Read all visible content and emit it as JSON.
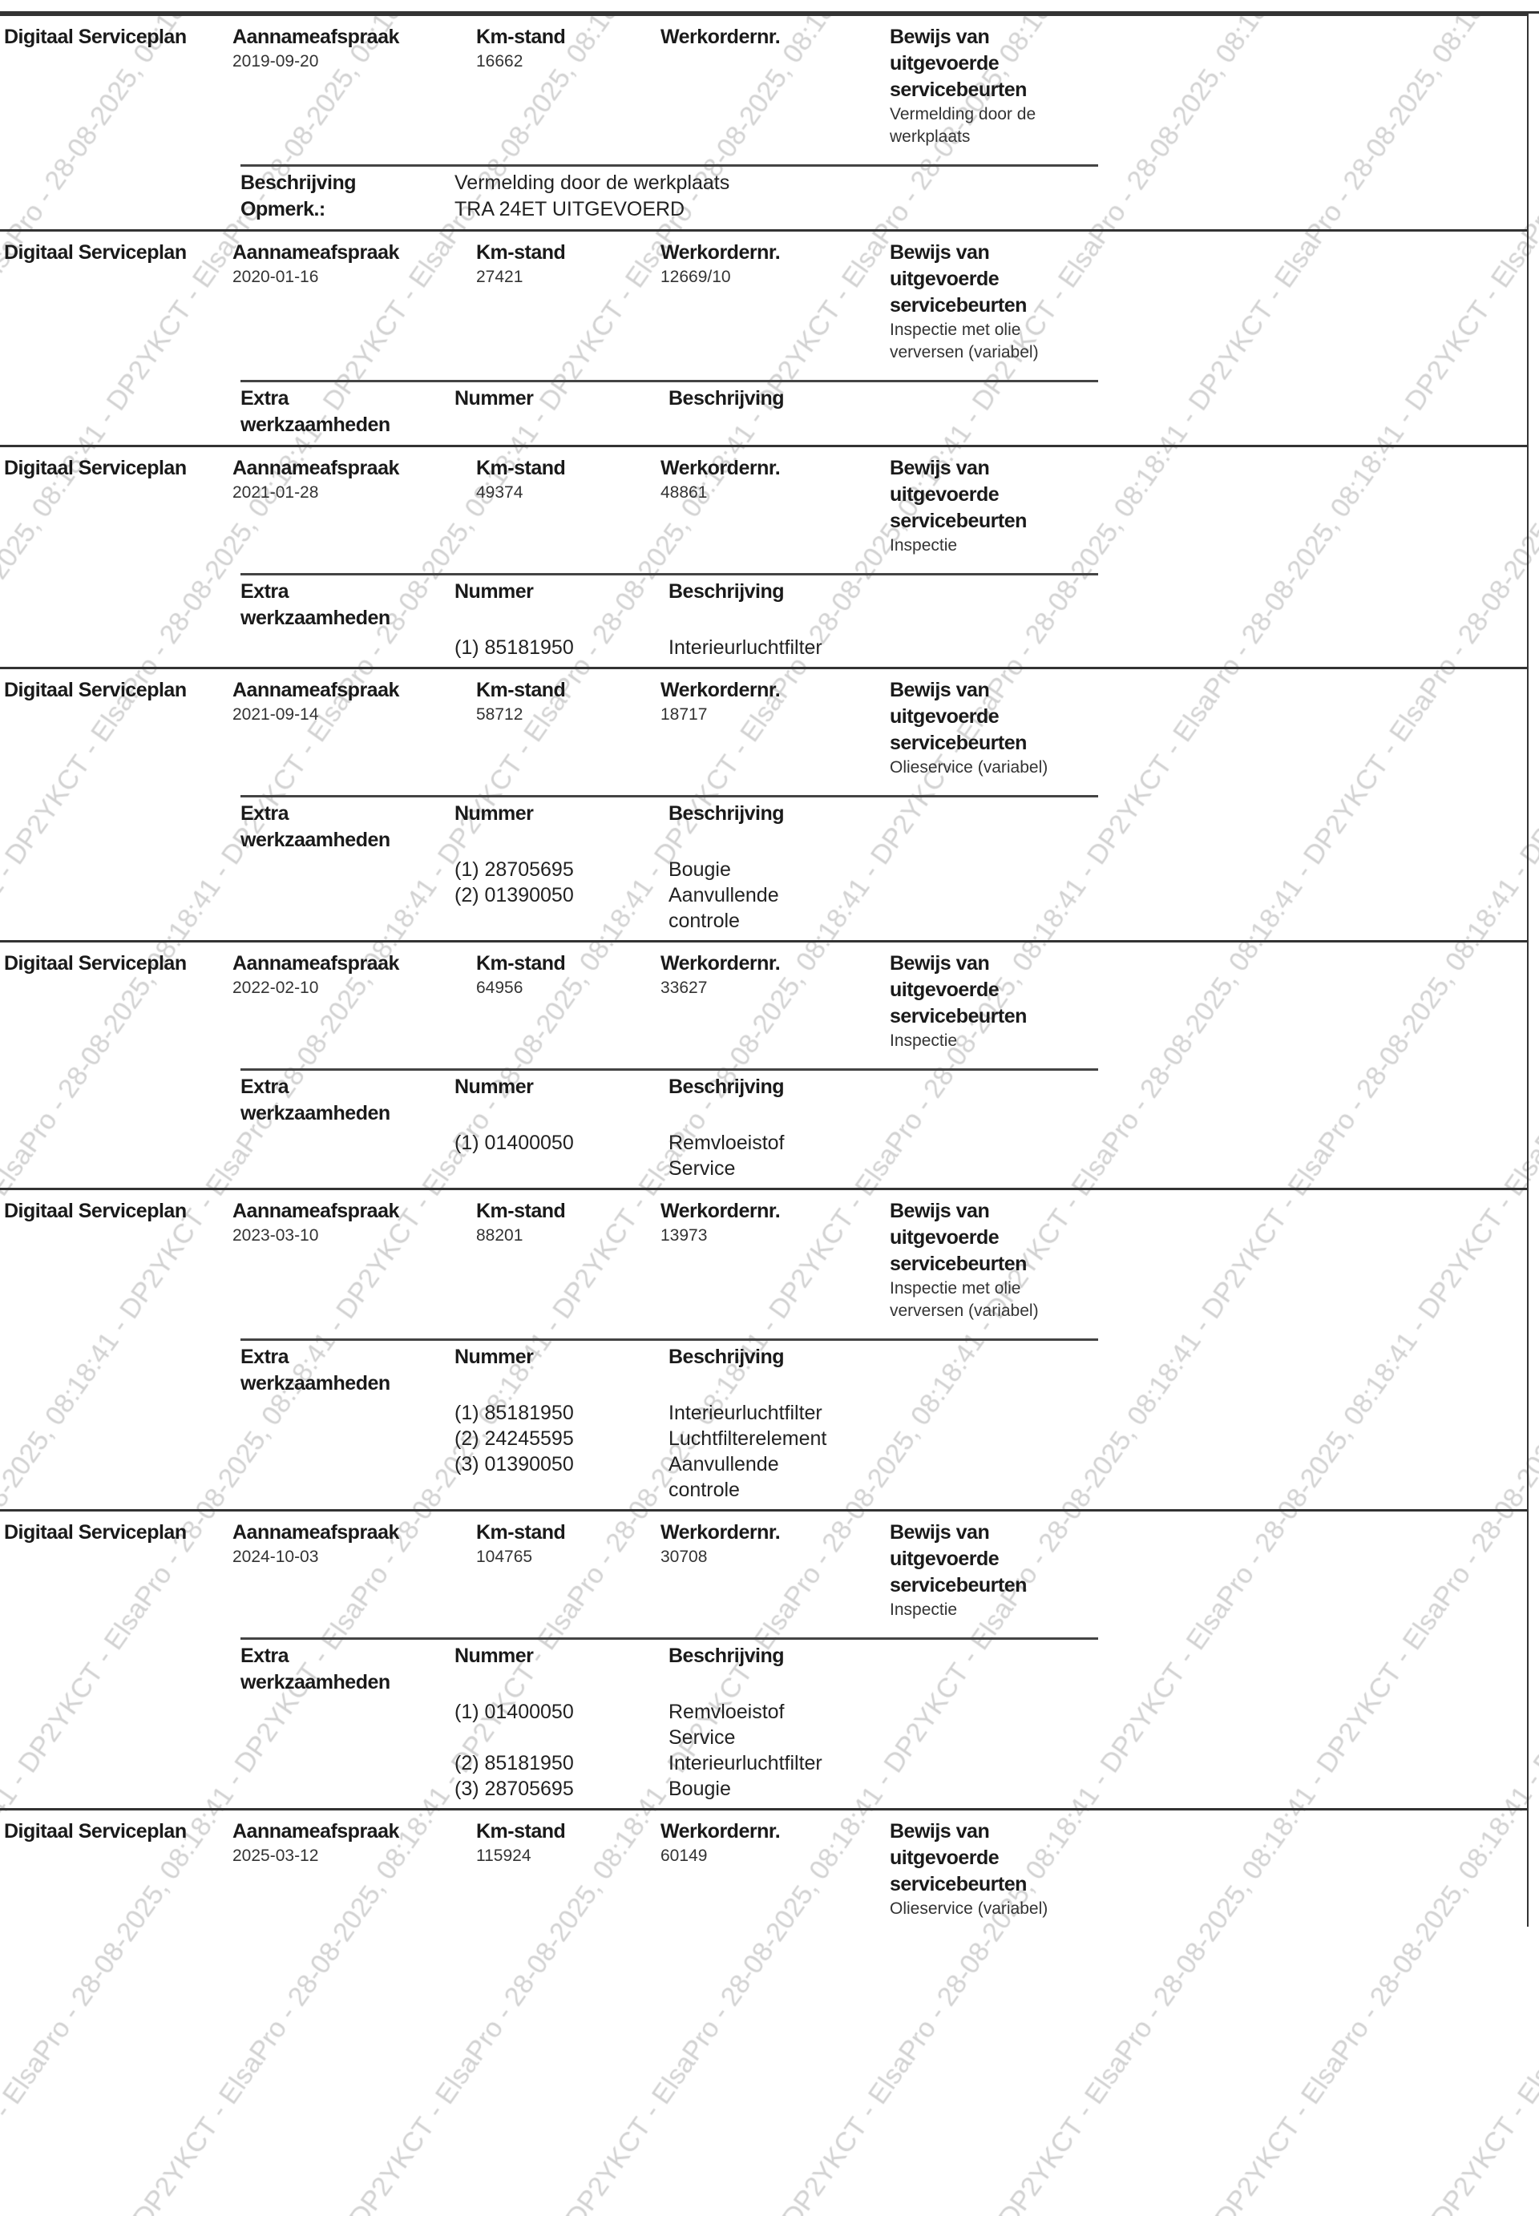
{
  "watermark": "08:18:41 - DP2YKCT - ElsaPro - 28-08-2025,",
  "labels": {
    "plan": "Digitaal Serviceplan",
    "date": "Aannameafspraak",
    "km": "Km-stand",
    "order": "Werkordernr.",
    "proof1": "Bewijs van",
    "proof2": "uitgevoerde",
    "proof3": "servicebeurten",
    "extra1": "Extra",
    "extra2": "werkzaamheden",
    "number": "Nummer",
    "description": "Beschrijving",
    "remark": "Opmerk.:"
  },
  "records": [
    {
      "date": "2019-09-20",
      "km": "16662",
      "order": "",
      "proof": [
        "Vermelding door de",
        "werkplaats"
      ],
      "note": {
        "description": "Vermelding door de werkplaats",
        "remark": "TRA 24ET UITGEVOERD"
      }
    },
    {
      "date": "2020-01-16",
      "km": "27421",
      "order": "12669/10",
      "proof": [
        "Inspectie met olie",
        "verversen (variabel)"
      ],
      "items": []
    },
    {
      "date": "2021-01-28",
      "km": "49374",
      "order": "48861",
      "proof": [
        "Inspectie"
      ],
      "items": [
        {
          "number": "(1) 85181950",
          "description": [
            "Interieurluchtfilter"
          ]
        }
      ]
    },
    {
      "date": "2021-09-14",
      "km": "58712",
      "order": "18717",
      "proof": [
        "Olieservice (variabel)"
      ],
      "items": [
        {
          "number": "(1) 28705695",
          "description": [
            "Bougie"
          ]
        },
        {
          "number": "(2) 01390050",
          "description": [
            "Aanvullende",
            "controle"
          ]
        }
      ]
    },
    {
      "date": "2022-02-10",
      "km": "64956",
      "order": "33627",
      "proof": [
        "Inspectie"
      ],
      "items": [
        {
          "number": "(1) 01400050",
          "description": [
            "Remvloeistof",
            "Service"
          ]
        }
      ]
    },
    {
      "date": "2023-03-10",
      "km": "88201",
      "order": "13973",
      "proof": [
        "Inspectie met olie",
        "verversen (variabel)"
      ],
      "items": [
        {
          "number": "(1) 85181950",
          "description": [
            "Interieurluchtfilter"
          ]
        },
        {
          "number": "(2) 24245595",
          "description": [
            "Luchtfilterelement"
          ]
        },
        {
          "number": "(3) 01390050",
          "description": [
            "Aanvullende",
            "controle"
          ]
        }
      ]
    },
    {
      "date": "2024-10-03",
      "km": "104765",
      "order": "30708",
      "proof": [
        "Inspectie"
      ],
      "items": [
        {
          "number": "(1) 01400050",
          "description": [
            "Remvloeistof",
            "Service"
          ]
        },
        {
          "number": "(2) 85181950",
          "description": [
            "Interieurluchtfilter"
          ]
        },
        {
          "number": "(3) 28705695",
          "description": [
            "Bougie"
          ]
        }
      ]
    },
    {
      "date": "2025-03-12",
      "km": "115924",
      "order": "60149",
      "proof": [
        "Olieservice (variabel)"
      ]
    }
  ]
}
